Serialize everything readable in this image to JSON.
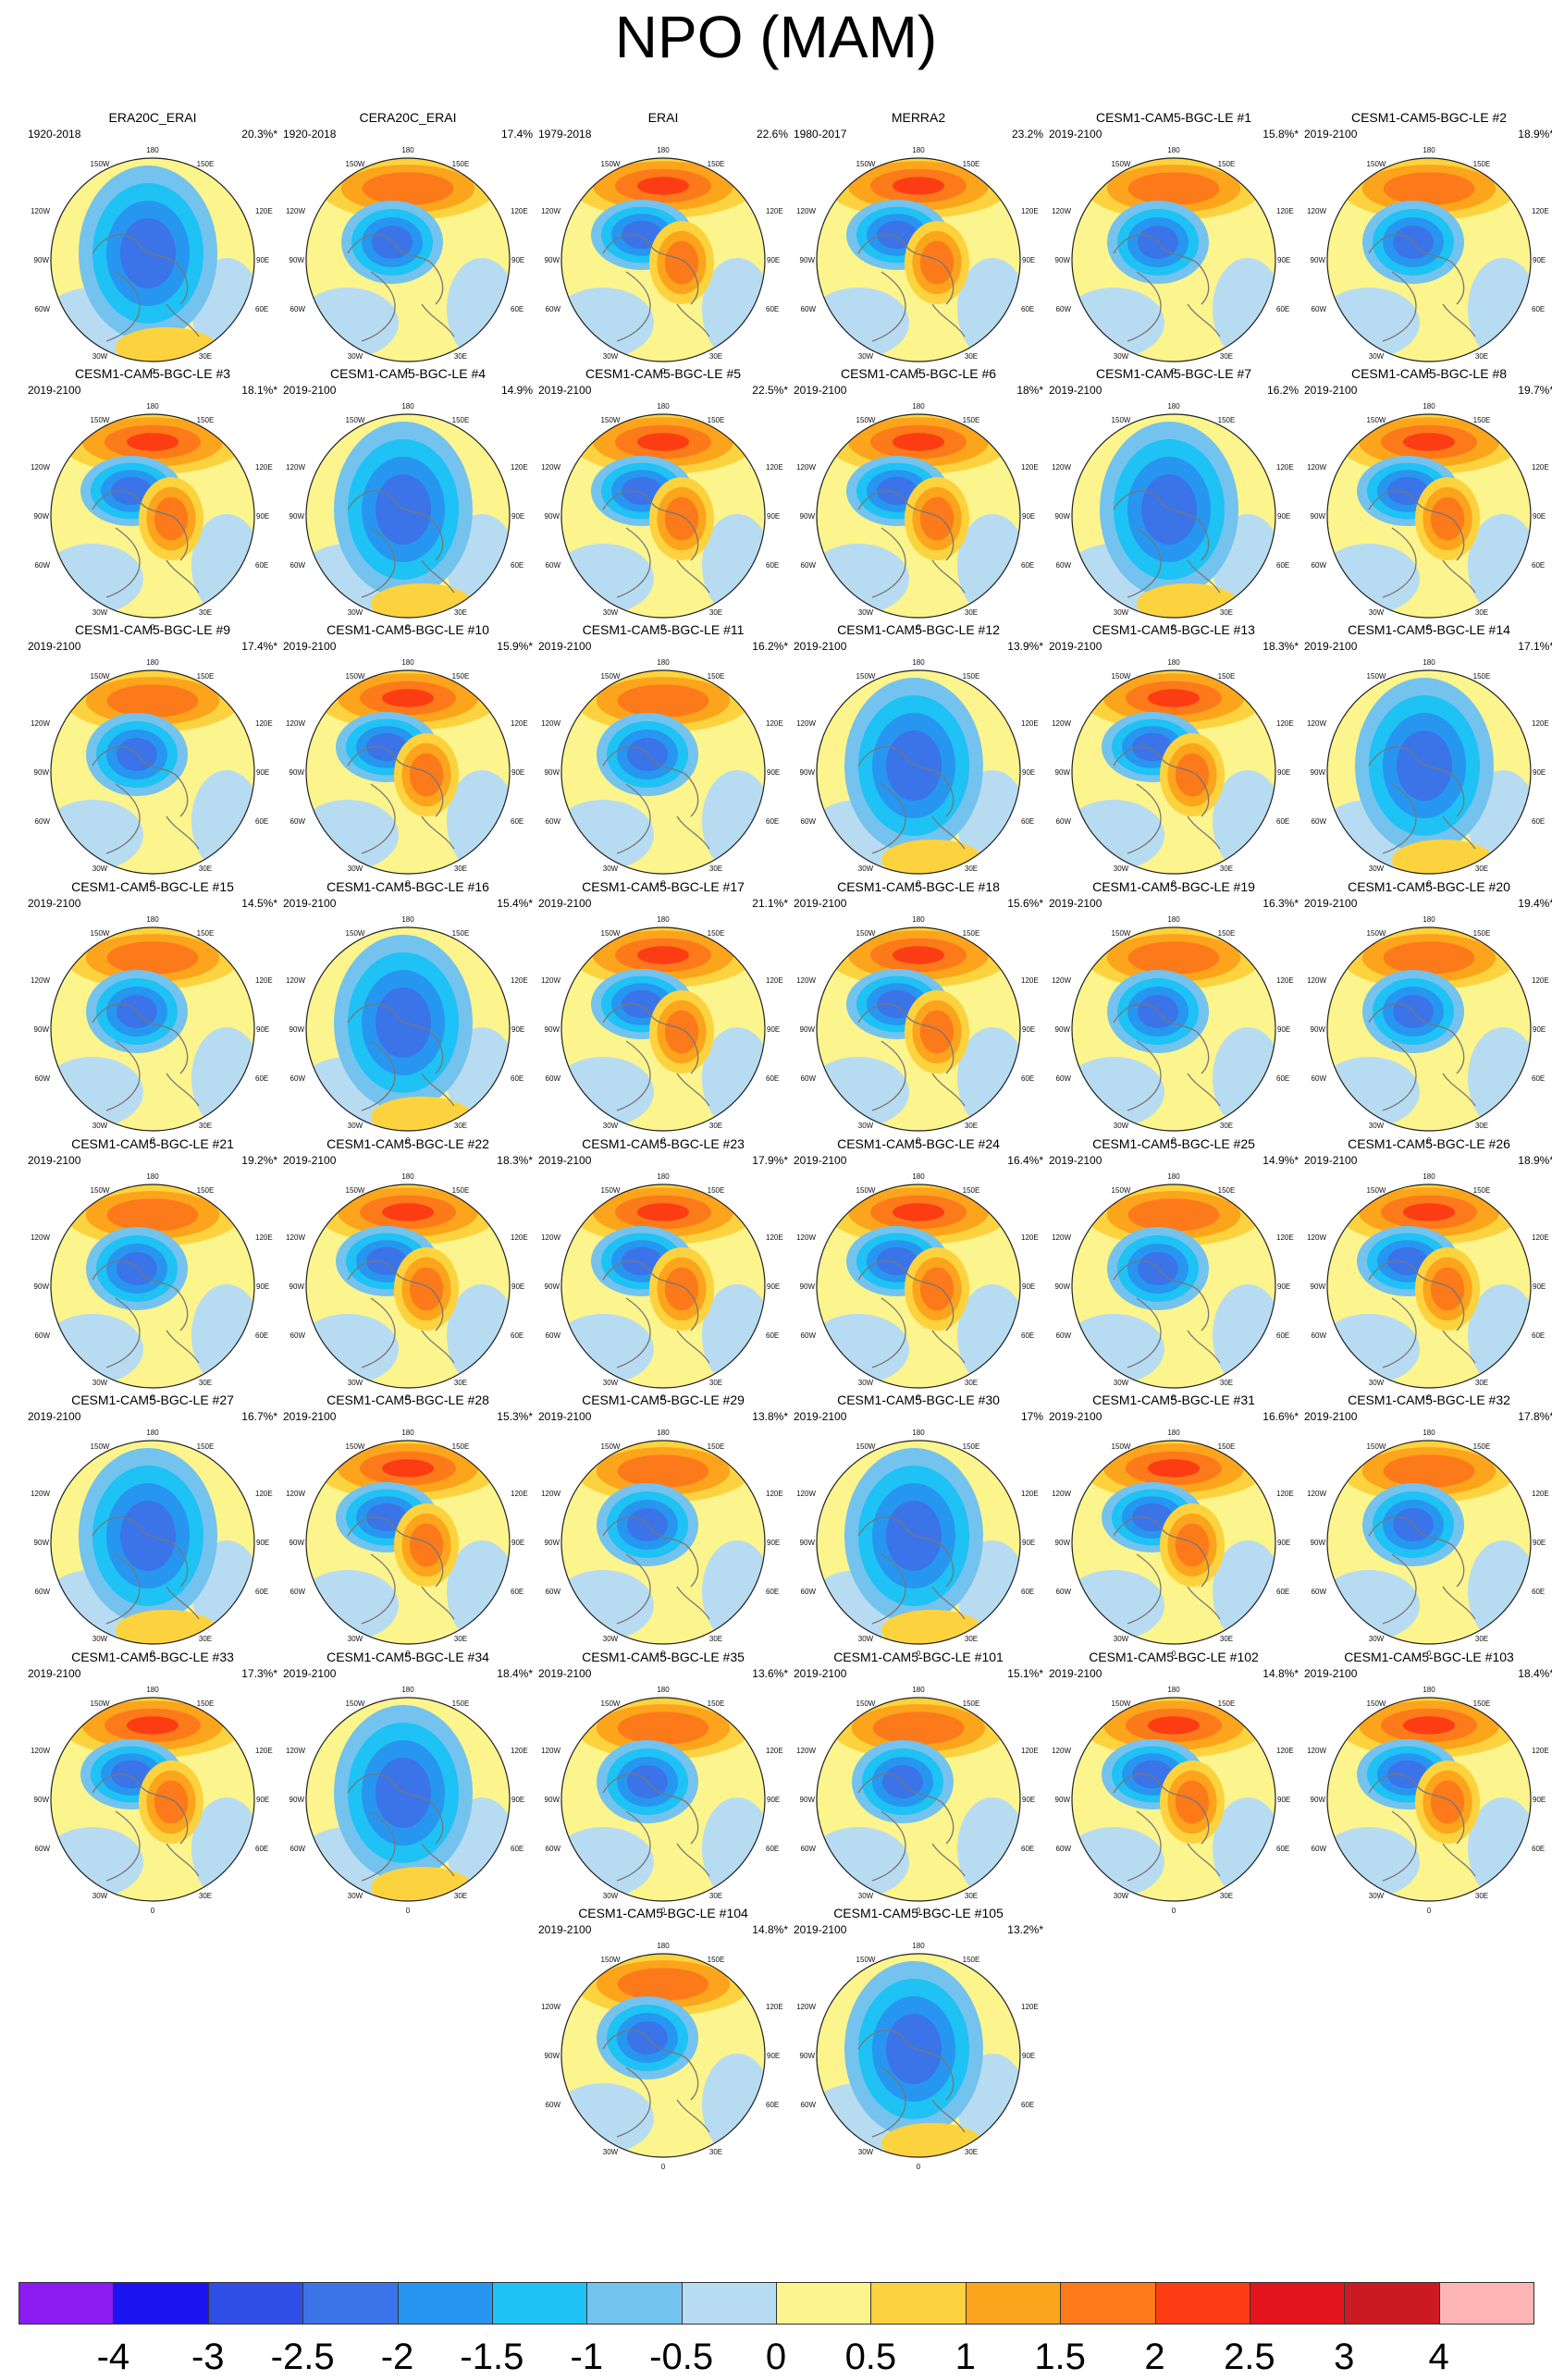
{
  "title": "NPO (MAM)",
  "colorbar": {
    "labels": [
      "-4",
      "-3",
      "-2.5",
      "-2",
      "-1.5",
      "-1",
      "-0.5",
      "0",
      "0.5",
      "1",
      "1.5",
      "2",
      "2.5",
      "3",
      "4"
    ],
    "colors": [
      "#8a1cf2",
      "#1c14f0",
      "#2f4ee6",
      "#3a74e8",
      "#2796f0",
      "#1ec2f4",
      "#74c2ee",
      "#b7dcf2",
      "#fcf48c",
      "#fcd33e",
      "#fca41c",
      "#fc7a1a",
      "#fc3d14",
      "#e4141e",
      "#cc1a22",
      "#fcb4b4"
    ]
  },
  "map_labels": {
    "top": "180",
    "top_left": "150W",
    "top_right": "150E",
    "upper_left": "120W",
    "upper_right": "120E",
    "left": "90W",
    "right": "90E",
    "lower_left": "60W",
    "lower_right": "60E",
    "bottom_left": "30W",
    "bottom_right": "30E",
    "bottom": "0"
  },
  "panels": [
    {
      "name": "ERA20C_ERAI",
      "years": "1920-2018",
      "pct": "20.3%*",
      "pattern": "negcenter"
    },
    {
      "name": "CERA20C_ERAI",
      "years": "1920-2018",
      "pct": "17.4%",
      "pattern": "dipole"
    },
    {
      "name": "ERAI",
      "years": "1979-2018",
      "pct": "22.6%",
      "pattern": "tripole"
    },
    {
      "name": "MERRA2",
      "years": "1980-2017",
      "pct": "23.2%",
      "pattern": "tripole"
    },
    {
      "name": "CESM1-CAM5-BGC-LE #1",
      "years": "2019-2100",
      "pct": "15.8%*",
      "pattern": "dipole"
    },
    {
      "name": "CESM1-CAM5-BGC-LE #2",
      "years": "2019-2100",
      "pct": "18.9%*",
      "pattern": "dipole"
    },
    {
      "name": "CESM1-CAM5-BGC-LE #3",
      "years": "2019-2100",
      "pct": "18.1%*",
      "pattern": "tripole"
    },
    {
      "name": "CESM1-CAM5-BGC-LE #4",
      "years": "2019-2100",
      "pct": "14.9%",
      "pattern": "negcenter"
    },
    {
      "name": "CESM1-CAM5-BGC-LE #5",
      "years": "2019-2100",
      "pct": "22.5%*",
      "pattern": "tripole"
    },
    {
      "name": "CESM1-CAM5-BGC-LE #6",
      "years": "2019-2100",
      "pct": "18%*",
      "pattern": "tripole"
    },
    {
      "name": "CESM1-CAM5-BGC-LE #7",
      "years": "2019-2100",
      "pct": "16.2%",
      "pattern": "negcenter"
    },
    {
      "name": "CESM1-CAM5-BGC-LE #8",
      "years": "2019-2100",
      "pct": "19.7%*",
      "pattern": "tripole"
    },
    {
      "name": "CESM1-CAM5-BGC-LE #9",
      "years": "2019-2100",
      "pct": "17.4%*",
      "pattern": "dipole"
    },
    {
      "name": "CESM1-CAM5-BGC-LE #10",
      "years": "2019-2100",
      "pct": "15.9%*",
      "pattern": "tripole"
    },
    {
      "name": "CESM1-CAM5-BGC-LE #11",
      "years": "2019-2100",
      "pct": "16.2%*",
      "pattern": "dipole"
    },
    {
      "name": "CESM1-CAM5-BGC-LE #12",
      "years": "2019-2100",
      "pct": "13.9%*",
      "pattern": "negcenter"
    },
    {
      "name": "CESM1-CAM5-BGC-LE #13",
      "years": "2019-2100",
      "pct": "18.3%*",
      "pattern": "tripole"
    },
    {
      "name": "CESM1-CAM5-BGC-LE #14",
      "years": "2019-2100",
      "pct": "17.1%*",
      "pattern": "negcenter"
    },
    {
      "name": "CESM1-CAM5-BGC-LE #15",
      "years": "2019-2100",
      "pct": "14.5%*",
      "pattern": "dipole"
    },
    {
      "name": "CESM1-CAM5-BGC-LE #16",
      "years": "2019-2100",
      "pct": "15.4%*",
      "pattern": "negcenter"
    },
    {
      "name": "CESM1-CAM5-BGC-LE #17",
      "years": "2019-2100",
      "pct": "21.1%*",
      "pattern": "tripole"
    },
    {
      "name": "CESM1-CAM5-BGC-LE #18",
      "years": "2019-2100",
      "pct": "15.6%*",
      "pattern": "tripole"
    },
    {
      "name": "CESM1-CAM5-BGC-LE #19",
      "years": "2019-2100",
      "pct": "16.3%*",
      "pattern": "dipole"
    },
    {
      "name": "CESM1-CAM5-BGC-LE #20",
      "years": "2019-2100",
      "pct": "19.4%*",
      "pattern": "dipole"
    },
    {
      "name": "CESM1-CAM5-BGC-LE #21",
      "years": "2019-2100",
      "pct": "19.2%*",
      "pattern": "dipole"
    },
    {
      "name": "CESM1-CAM5-BGC-LE #22",
      "years": "2019-2100",
      "pct": "18.3%*",
      "pattern": "tripole"
    },
    {
      "name": "CESM1-CAM5-BGC-LE #23",
      "years": "2019-2100",
      "pct": "17.9%*",
      "pattern": "tripole"
    },
    {
      "name": "CESM1-CAM5-BGC-LE #24",
      "years": "2019-2100",
      "pct": "16.4%*",
      "pattern": "tripole"
    },
    {
      "name": "CESM1-CAM5-BGC-LE #25",
      "years": "2019-2100",
      "pct": "14.9%*",
      "pattern": "dipole"
    },
    {
      "name": "CESM1-CAM5-BGC-LE #26",
      "years": "2019-2100",
      "pct": "18.9%*",
      "pattern": "tripole"
    },
    {
      "name": "CESM1-CAM5-BGC-LE #27",
      "years": "2019-2100",
      "pct": "16.7%*",
      "pattern": "negcenter"
    },
    {
      "name": "CESM1-CAM5-BGC-LE #28",
      "years": "2019-2100",
      "pct": "15.3%*",
      "pattern": "tripole"
    },
    {
      "name": "CESM1-CAM5-BGC-LE #29",
      "years": "2019-2100",
      "pct": "13.8%*",
      "pattern": "dipole"
    },
    {
      "name": "CESM1-CAM5-BGC-LE #30",
      "years": "2019-2100",
      "pct": "17%",
      "pattern": "negcenter"
    },
    {
      "name": "CESM1-CAM5-BGC-LE #31",
      "years": "2019-2100",
      "pct": "16.6%*",
      "pattern": "tripole"
    },
    {
      "name": "CESM1-CAM5-BGC-LE #32",
      "years": "2019-2100",
      "pct": "17.8%*",
      "pattern": "dipole"
    },
    {
      "name": "CESM1-CAM5-BGC-LE #33",
      "years": "2019-2100",
      "pct": "17.3%*",
      "pattern": "tripole"
    },
    {
      "name": "CESM1-CAM5-BGC-LE #34",
      "years": "2019-2100",
      "pct": "18.4%*",
      "pattern": "negcenter"
    },
    {
      "name": "CESM1-CAM5-BGC-LE #35",
      "years": "2019-2100",
      "pct": "13.6%*",
      "pattern": "dipole"
    },
    {
      "name": "CESM1-CAM5-BGC-LE #101",
      "years": "2019-2100",
      "pct": "15.1%*",
      "pattern": "dipole"
    },
    {
      "name": "CESM1-CAM5-BGC-LE #102",
      "years": "2019-2100",
      "pct": "14.8%*",
      "pattern": "tripole"
    },
    {
      "name": "CESM1-CAM5-BGC-LE #103",
      "years": "2019-2100",
      "pct": "18.4%*",
      "pattern": "tripole"
    },
    {
      "name": "CESM1-CAM5-BGC-LE #104",
      "years": "2019-2100",
      "pct": "14.8%*",
      "pattern": "dipole"
    },
    {
      "name": "CESM1-CAM5-BGC-LE #105",
      "years": "2019-2100",
      "pct": "13.2%*",
      "pattern": "negcenter"
    }
  ]
}
